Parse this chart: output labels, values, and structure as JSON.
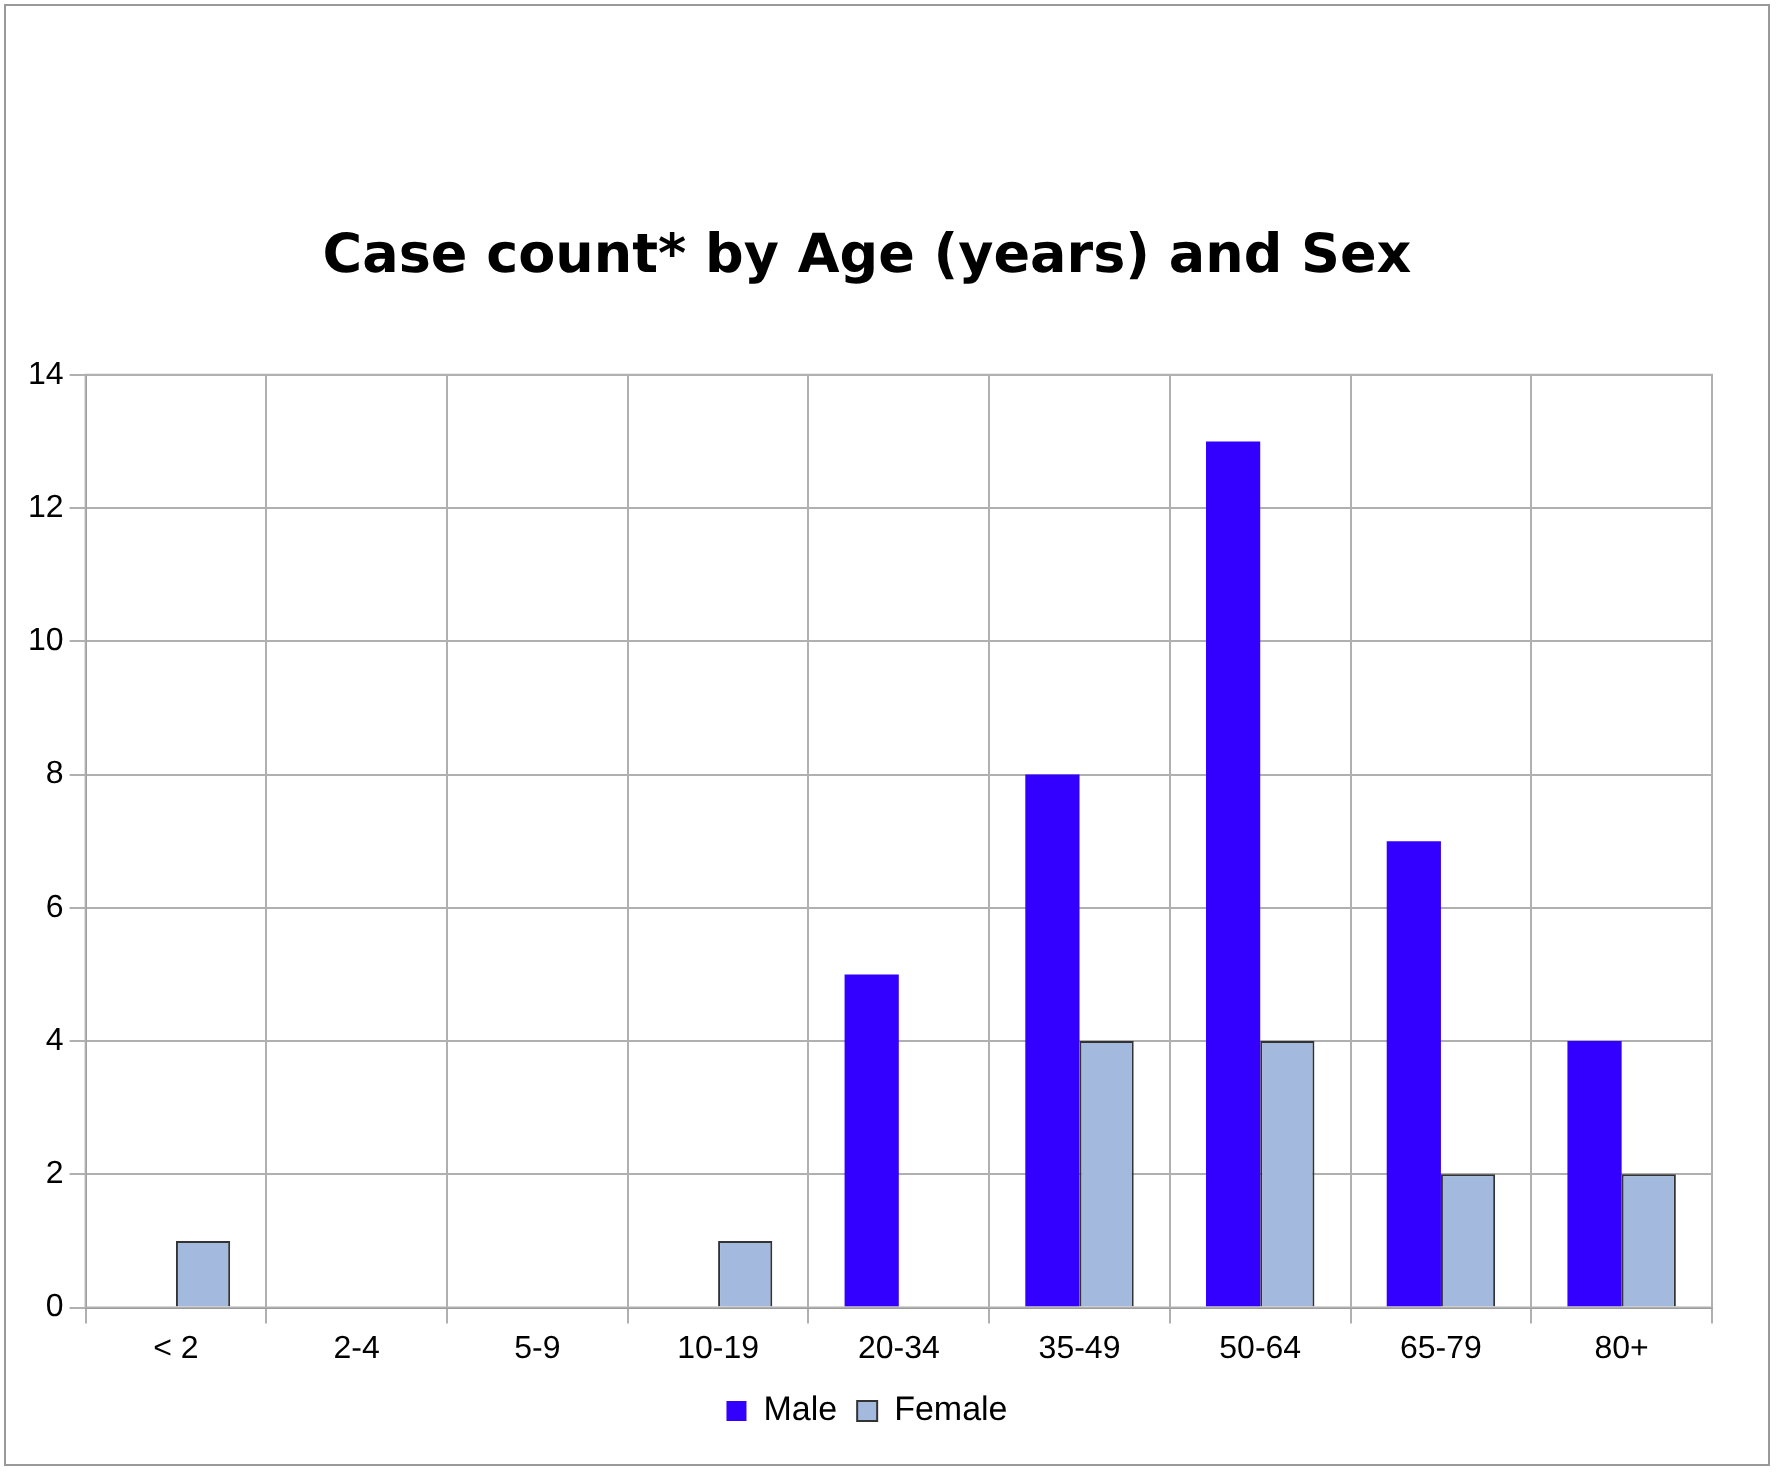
{
  "chart_data": {
    "type": "bar",
    "title": "Case count* by Age (years) and Sex",
    "categories": [
      "< 2",
      "2-4",
      "5-9",
      "10-19",
      "20-34",
      "35-49",
      "50-64",
      "65-79",
      "80+"
    ],
    "series": [
      {
        "name": "Male",
        "color": "#3300ff",
        "values": [
          0,
          0,
          0,
          0,
          5,
          8,
          13,
          7,
          4
        ]
      },
      {
        "name": "Female",
        "color": "#a3b9de",
        "values": [
          1,
          0,
          0,
          1,
          0,
          4,
          4,
          2,
          2
        ]
      }
    ],
    "ylim": [
      0,
      14
    ],
    "yticks": [
      0,
      2,
      4,
      6,
      8,
      10,
      12,
      14
    ],
    "grid": true,
    "legend": "bottom"
  }
}
